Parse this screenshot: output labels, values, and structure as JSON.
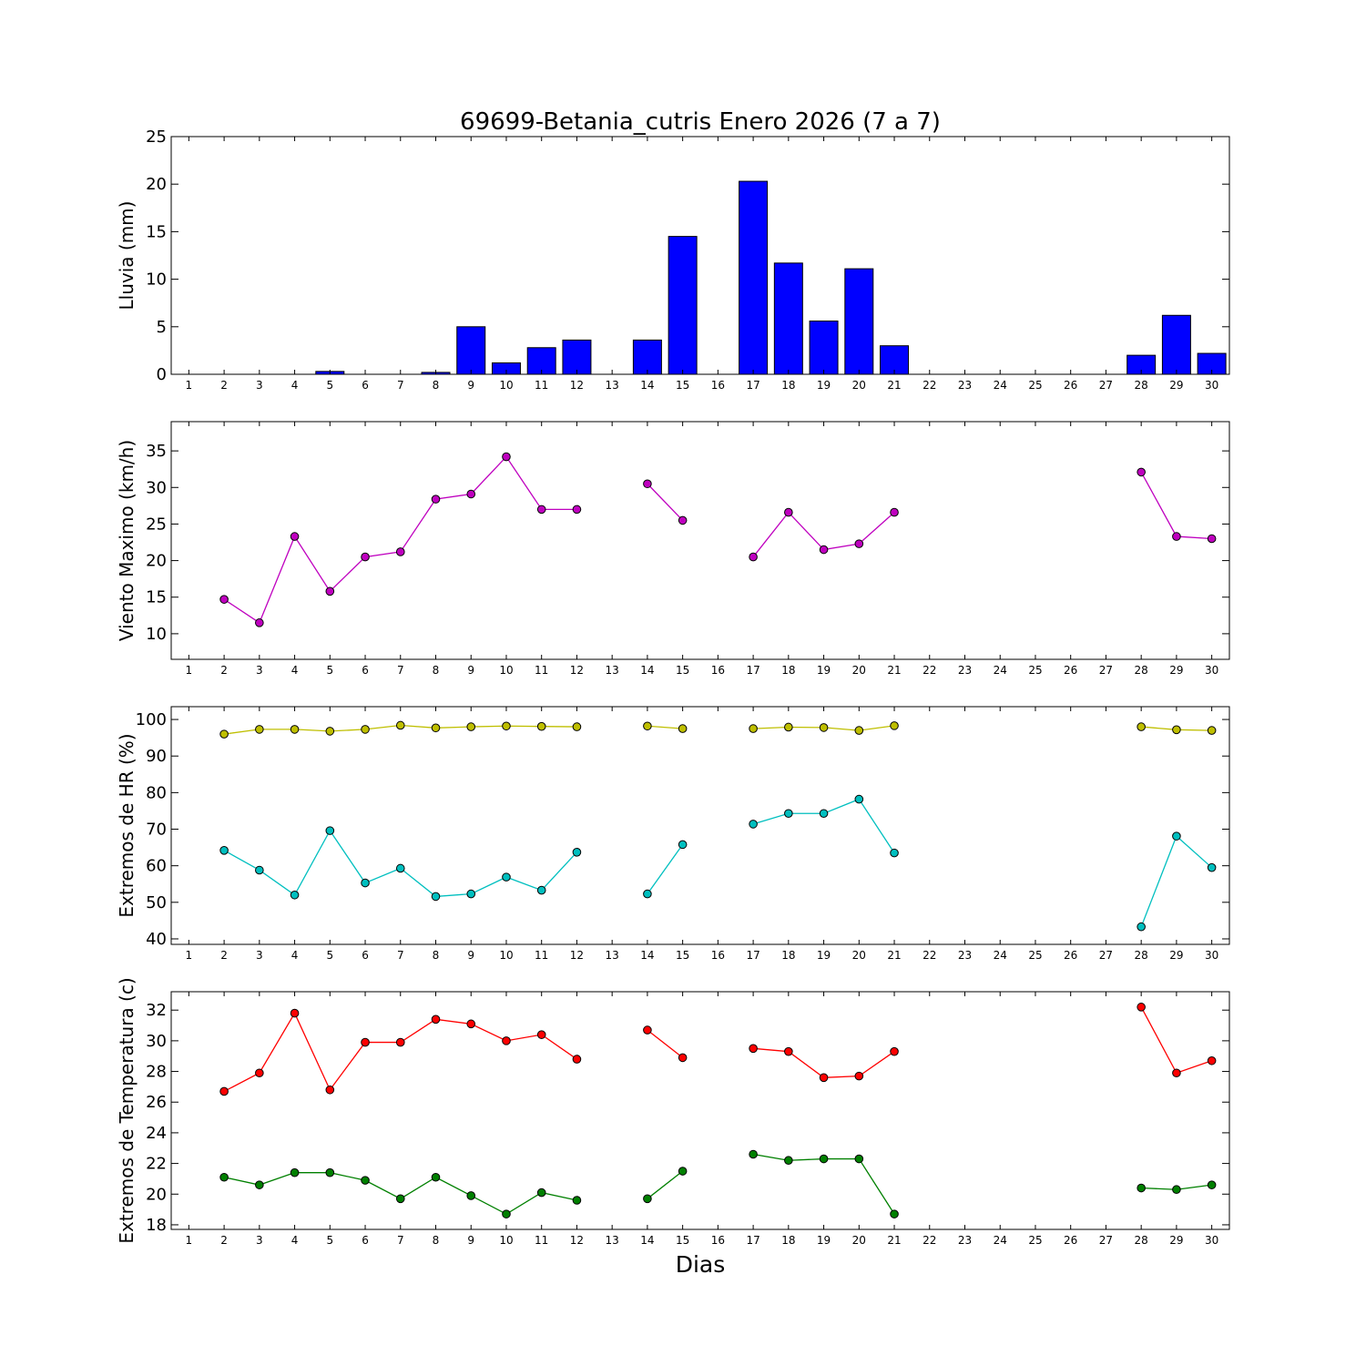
{
  "title": "69699-Betania_cutris Enero 2026  (7 a 7)",
  "xlabel": "Dias",
  "colors": {
    "rain": "#0000ff",
    "wind": "#bf00bf",
    "hr_max": "#bfbf00",
    "hr_min": "#00bfbf",
    "t_max": "#ff0000",
    "t_min": "#008000"
  },
  "chart_data": [
    {
      "type": "bar",
      "ylabel": "Lluvia (mm)",
      "xlim": [
        0.5,
        30.5
      ],
      "ylim": [
        0,
        25
      ],
      "yticks": [
        0,
        5,
        10,
        15,
        20,
        25
      ],
      "x": [
        1,
        2,
        3,
        4,
        5,
        6,
        7,
        8,
        9,
        10,
        11,
        12,
        13,
        14,
        15,
        16,
        17,
        18,
        19,
        20,
        21,
        22,
        23,
        24,
        25,
        26,
        27,
        28,
        29,
        30
      ],
      "values": [
        0,
        0,
        0,
        0,
        0.3,
        0,
        0,
        0.2,
        5.0,
        1.2,
        2.8,
        3.6,
        0,
        3.6,
        14.5,
        0,
        20.3,
        11.7,
        5.6,
        11.1,
        3.0,
        0,
        0,
        0,
        0,
        0,
        0,
        2.0,
        6.2,
        2.2
      ]
    },
    {
      "type": "line",
      "ylabel": "Viento Maximo (km/h)",
      "xlim": [
        0.5,
        30.5
      ],
      "ylim": [
        6.5,
        39
      ],
      "yticks": [
        10,
        15,
        20,
        25,
        30,
        35
      ],
      "x": [
        1,
        2,
        3,
        4,
        5,
        6,
        7,
        8,
        9,
        10,
        11,
        12,
        13,
        14,
        15,
        16,
        17,
        18,
        19,
        20,
        21,
        22,
        23,
        24,
        25,
        26,
        27,
        28,
        29,
        30
      ],
      "series": [
        {
          "color_key": "wind",
          "values": [
            null,
            14.7,
            11.5,
            23.3,
            15.8,
            20.5,
            21.2,
            28.4,
            29.1,
            34.2,
            27.0,
            27.0,
            null,
            30.5,
            25.5,
            null,
            20.5,
            26.6,
            21.5,
            22.3,
            26.6,
            null,
            null,
            null,
            null,
            null,
            null,
            32.1,
            23.3,
            23.0
          ]
        }
      ]
    },
    {
      "type": "line",
      "ylabel": "Extremos de HR (%)",
      "xlim": [
        0.5,
        30.5
      ],
      "ylim": [
        38.5,
        103.5
      ],
      "yticks": [
        40,
        50,
        60,
        70,
        80,
        90,
        100
      ],
      "x": [
        1,
        2,
        3,
        4,
        5,
        6,
        7,
        8,
        9,
        10,
        11,
        12,
        13,
        14,
        15,
        16,
        17,
        18,
        19,
        20,
        21,
        22,
        23,
        24,
        25,
        26,
        27,
        28,
        29,
        30
      ],
      "series": [
        {
          "color_key": "hr_max",
          "values": [
            null,
            96.0,
            97.3,
            97.3,
            96.8,
            97.3,
            98.4,
            97.7,
            98.0,
            98.2,
            98.1,
            98.0,
            null,
            98.2,
            97.5,
            null,
            97.5,
            97.9,
            97.8,
            97.0,
            98.3,
            null,
            null,
            null,
            null,
            null,
            null,
            98.0,
            97.2,
            97.0
          ]
        },
        {
          "color_key": "hr_min",
          "values": [
            null,
            64.2,
            58.8,
            52.0,
            69.6,
            55.3,
            59.3,
            51.6,
            52.3,
            56.9,
            53.3,
            63.7,
            null,
            52.3,
            65.8,
            null,
            71.4,
            74.3,
            74.3,
            78.2,
            63.5,
            null,
            null,
            null,
            null,
            null,
            null,
            43.3,
            68.1,
            59.5
          ]
        }
      ]
    },
    {
      "type": "line",
      "ylabel": "Extremos de Temperatura (c)",
      "xlim": [
        0.5,
        30.5
      ],
      "ylim": [
        17.7,
        33.2
      ],
      "yticks": [
        18,
        20,
        22,
        24,
        26,
        28,
        30,
        32
      ],
      "x": [
        1,
        2,
        3,
        4,
        5,
        6,
        7,
        8,
        9,
        10,
        11,
        12,
        13,
        14,
        15,
        16,
        17,
        18,
        19,
        20,
        21,
        22,
        23,
        24,
        25,
        26,
        27,
        28,
        29,
        30
      ],
      "series": [
        {
          "color_key": "t_max",
          "values": [
            null,
            26.7,
            27.9,
            31.8,
            26.8,
            29.9,
            29.9,
            31.4,
            31.1,
            30.0,
            30.4,
            28.8,
            null,
            30.7,
            28.9,
            null,
            29.5,
            29.3,
            27.6,
            27.7,
            29.3,
            null,
            null,
            null,
            null,
            null,
            null,
            32.2,
            27.9,
            28.7
          ]
        },
        {
          "color_key": "t_min",
          "values": [
            null,
            21.1,
            20.6,
            21.4,
            21.4,
            20.9,
            19.7,
            21.1,
            19.9,
            18.7,
            20.1,
            19.6,
            null,
            19.7,
            21.5,
            null,
            22.6,
            22.2,
            22.3,
            22.3,
            18.7,
            null,
            null,
            null,
            null,
            null,
            null,
            20.4,
            20.3,
            20.6
          ]
        }
      ]
    }
  ]
}
